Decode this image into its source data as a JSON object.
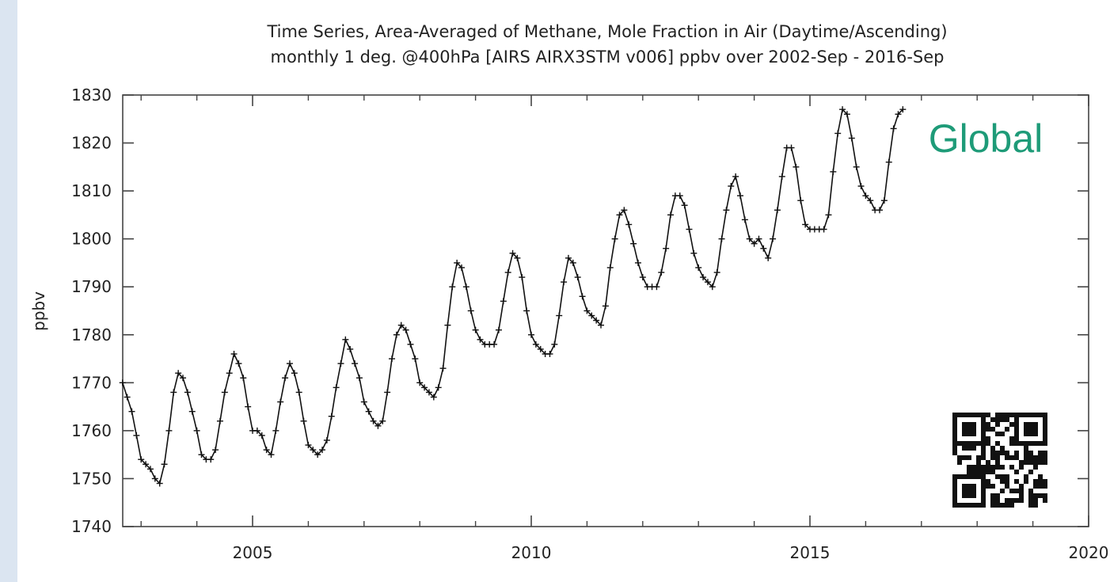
{
  "chart_data": {
    "type": "line",
    "title": "Time Series, Area-Averaged of Methane, Mole Fraction in Air (Daytime/Ascending)",
    "subtitle": "monthly 1 deg. @400hPa [AIRS AIRX3STM v006] ppbv over 2002-Sep - 2016-Sep",
    "xlabel": "",
    "ylabel": "ppbv",
    "xlim": [
      2002.67,
      2020.0
    ],
    "ylim": [
      1740,
      1830
    ],
    "x_ticks": [
      "2005",
      "2010",
      "2015",
      "2020"
    ],
    "y_ticks": [
      "1830",
      "1820",
      "1810",
      "1800",
      "1790",
      "1780",
      "1770",
      "1760",
      "1750",
      "1740"
    ],
    "annotation": "Global",
    "grid": false,
    "marker": "+",
    "series": [
      {
        "start": "2002-09",
        "frequency": "monthly",
        "values": [
          1770,
          1767,
          1764,
          1759,
          1754,
          1753,
          1752,
          1750,
          1749,
          1753,
          1760,
          1768,
          1772,
          1771,
          1768,
          1764,
          1760,
          1755,
          1754,
          1754,
          1756,
          1762,
          1768,
          1772,
          1776,
          1774,
          1771,
          1765,
          1760,
          1760,
          1759,
          1756,
          1755,
          1760,
          1766,
          1771,
          1774,
          1772,
          1768,
          1762,
          1757,
          1756,
          1755,
          1756,
          1758,
          1763,
          1769,
          1774,
          1779,
          1777,
          1774,
          1771,
          1766,
          1764,
          1762,
          1761,
          1762,
          1768,
          1775,
          1780,
          1782,
          1781,
          1778,
          1775,
          1770,
          1769,
          1768,
          1767,
          1769,
          1773,
          1782,
          1790,
          1795,
          1794,
          1790,
          1785,
          1781,
          1779,
          1778,
          1778,
          1778,
          1781,
          1787,
          1793,
          1797,
          1796,
          1792,
          1785,
          1780,
          1778,
          1777,
          1776,
          1776,
          1778,
          1784,
          1791,
          1796,
          1795,
          1792,
          1788,
          1785,
          1784,
          1783,
          1782,
          1786,
          1794,
          1800,
          1805,
          1806,
          1803,
          1799,
          1795,
          1792,
          1790,
          1790,
          1790,
          1793,
          1798,
          1805,
          1809,
          1809,
          1807,
          1802,
          1797,
          1794,
          1792,
          1791,
          1790,
          1793,
          1800,
          1806,
          1811,
          1813,
          1809,
          1804,
          1800,
          1799,
          1800,
          1798,
          1796,
          1800,
          1806,
          1813,
          1819,
          1819,
          1815,
          1808,
          1803,
          1802,
          1802,
          1802,
          1802,
          1805,
          1814,
          1822,
          1827,
          1826,
          1821,
          1815,
          1811,
          1809,
          1808,
          1806,
          1806,
          1808,
          1816,
          1823,
          1826,
          1827
        ]
      }
    ]
  }
}
